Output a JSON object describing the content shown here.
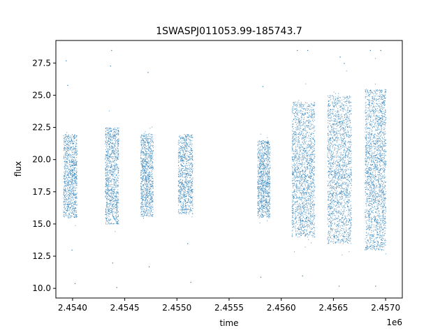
{
  "chart_data": {
    "type": "scatter",
    "title": "1SWASPJ011053.99-185743.7",
    "xlabel": "time",
    "ylabel": "flux",
    "x_offset_label": "1e6",
    "xlim": [
      2453840,
      2457160
    ],
    "ylim": [
      9.25,
      29.25
    ],
    "x_ticks": [
      2454000,
      2454500,
      2455000,
      2455500,
      2456000,
      2456500,
      2457000
    ],
    "x_tick_labels": [
      "2.4540",
      "2.4545",
      "2.4550",
      "2.4555",
      "2.4560",
      "2.4565",
      "2.4570"
    ],
    "y_ticks": [
      10.0,
      12.5,
      15.0,
      17.5,
      20.0,
      22.5,
      25.0,
      27.5
    ],
    "y_tick_labels": [
      "10.0",
      "12.5",
      "15.0",
      "17.5",
      "20.0",
      "22.5",
      "25.0",
      "27.5"
    ],
    "grid": false,
    "marker_color": "#1f77b4",
    "series": [
      {
        "segments": [
          {
            "x_range": [
              2453910,
              2454040
            ],
            "band": [
              15.5,
              22.0
            ],
            "points": 900,
            "outliers": [
              [
                2453935,
                27.7
              ],
              [
                2453950,
                25.8
              ],
              [
                2453990,
                13.0
              ],
              [
                2454020,
                10.4
              ]
            ]
          },
          {
            "x_range": [
              2454310,
              2454440
            ],
            "band": [
              15.0,
              22.5
            ],
            "points": 1000,
            "outliers": [
              [
                2454370,
                28.5
              ],
              [
                2454360,
                27.3
              ],
              [
                2454380,
                12.0
              ],
              [
                2454420,
                10.1
              ]
            ]
          },
          {
            "x_range": [
              2454650,
              2454770
            ],
            "band": [
              15.6,
              22.0
            ],
            "points": 900,
            "outliers": [
              [
                2454720,
                26.8
              ],
              [
                2454730,
                11.7
              ]
            ]
          },
          {
            "x_range": [
              2455010,
              2455150
            ],
            "band": [
              15.8,
              22.0
            ],
            "points": 850,
            "outliers": [
              [
                2455100,
                13.5
              ],
              [
                2455130,
                10.5
              ]
            ]
          },
          {
            "x_range": [
              2455770,
              2455890
            ],
            "band": [
              15.5,
              21.5
            ],
            "points": 900,
            "outliers": [
              [
                2455820,
                25.7
              ],
              [
                2455800,
                10.9
              ]
            ]
          },
          {
            "x_range": [
              2456100,
              2456320
            ],
            "band": [
              14.0,
              24.5
            ],
            "points": 1700,
            "outliers": [
              [
                2456150,
                28.5
              ],
              [
                2456250,
                28.5
              ],
              [
                2456200,
                11.0
              ]
            ]
          },
          {
            "x_range": [
              2456440,
              2456670
            ],
            "band": [
              13.5,
              25.0
            ],
            "points": 1800,
            "outliers": [
              [
                2456560,
                28.0
              ],
              [
                2456600,
                27.5
              ],
              [
                2456550,
                10.2
              ]
            ]
          },
          {
            "x_range": [
              2456800,
              2457000
            ],
            "band": [
              13.0,
              25.5
            ],
            "points": 1900,
            "outliers": [
              [
                2456850,
                28.5
              ],
              [
                2456950,
                28.5
              ],
              [
                2456900,
                10.2
              ]
            ]
          }
        ]
      }
    ]
  }
}
